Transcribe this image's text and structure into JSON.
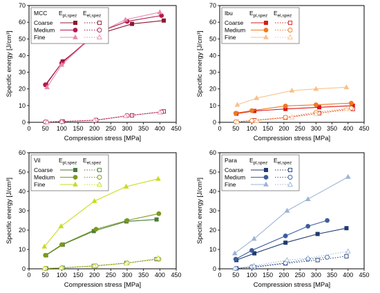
{
  "chart_data": [
    {
      "type": "line",
      "panel_label": "MCC",
      "xlabel": "Compression stress [MPa]",
      "ylabel": "Specific energy [J/cm³]",
      "xlim": [
        0,
        450
      ],
      "ylim": [
        0,
        70
      ],
      "xticks": [
        0,
        50,
        100,
        150,
        200,
        250,
        300,
        350,
        400,
        450
      ],
      "yticks": [
        0,
        10,
        20,
        30,
        40,
        50,
        60,
        70
      ],
      "legend_col1": "E_pl,spez",
      "legend_col2": "E_el,spez",
      "legend_placement": "top-left",
      "series": [
        {
          "name": "Coarse",
          "color": "#8b1a2e",
          "marker": "square",
          "pl": [
            [
              52,
              22.5
            ],
            [
              103,
              36.5
            ],
            [
              205,
              52.5
            ],
            [
              315,
              59
            ],
            [
              412,
              61
            ]
          ],
          "el": [
            [
              52,
              0.2
            ],
            [
              103,
              0.5
            ],
            [
              205,
              1.3
            ],
            [
              315,
              4.2
            ],
            [
              412,
              6.5
            ]
          ]
        },
        {
          "name": "Medium",
          "color": "#b5174f",
          "marker": "circle",
          "pl": [
            [
              50,
              22.5
            ],
            [
              100,
              35.5
            ],
            [
              205,
              53.5
            ],
            [
              300,
              60.5
            ],
            [
              405,
              64
            ]
          ],
          "el": [
            [
              50,
              0.2
            ],
            [
              100,
              0.5
            ],
            [
              205,
              1.3
            ],
            [
              300,
              4
            ],
            [
              405,
              6.2
            ]
          ]
        },
        {
          "name": "Fine",
          "color": "#e68aae",
          "marker": "triangle",
          "pl": [
            [
              55,
              21
            ],
            [
              100,
              34.5
            ],
            [
              200,
              52.5
            ],
            [
              295,
              61.5
            ],
            [
              400,
              66
            ]
          ],
          "el": [
            [
              55,
              0.1
            ],
            [
              100,
              0.4
            ],
            [
              200,
              1.2
            ],
            [
              295,
              3.8
            ],
            [
              400,
              6
            ]
          ]
        }
      ]
    },
    {
      "type": "line",
      "panel_label": "Ibu",
      "xlabel": "Compression stress [MPa]",
      "ylabel": "Specific energy [J/cm³]",
      "xlim": [
        0,
        450
      ],
      "ylim": [
        0,
        70
      ],
      "xticks": [
        0,
        50,
        100,
        150,
        200,
        250,
        300,
        350,
        400,
        450
      ],
      "yticks": [
        0,
        10,
        20,
        30,
        40,
        50,
        60,
        70
      ],
      "legend_col1": "E_pl,spez",
      "legend_col2": "E_el,spez",
      "legend_placement": "top-left",
      "series": [
        {
          "name": "Coarse",
          "color": "#d7191c",
          "marker": "square",
          "pl": [
            [
              52,
              5.2
            ],
            [
              108,
              6.8
            ],
            [
              205,
              8
            ],
            [
              310,
              9
            ],
            [
              415,
              10
            ]
          ],
          "el": [
            [
              52,
              0.3
            ],
            [
              108,
              1.2
            ],
            [
              205,
              2.8
            ],
            [
              310,
              5.5
            ],
            [
              415,
              8
            ]
          ]
        },
        {
          "name": "Medium",
          "color": "#f07820",
          "marker": "circle",
          "pl": [
            [
              50,
              5.5
            ],
            [
              100,
              7
            ],
            [
              205,
              9.8
            ],
            [
              300,
              10.5
            ],
            [
              410,
              11.5
            ]
          ],
          "el": [
            [
              50,
              0.3
            ],
            [
              100,
              1
            ],
            [
              205,
              3
            ],
            [
              300,
              6
            ],
            [
              410,
              8.5
            ]
          ]
        },
        {
          "name": "Fine",
          "color": "#f9c08a",
          "marker": "triangle",
          "pl": [
            [
              55,
              10.5
            ],
            [
              115,
              14.5
            ],
            [
              225,
              19
            ],
            [
              300,
              20
            ],
            [
              395,
              21
            ]
          ],
          "el": [
            [
              55,
              0.2
            ],
            [
              115,
              1
            ],
            [
              225,
              3
            ],
            [
              300,
              5
            ],
            [
              395,
              8
            ]
          ]
        }
      ]
    },
    {
      "type": "line",
      "panel_label": "Vil",
      "xlabel": "Compression stress [MPa]",
      "ylabel": "Specific energy [J/cm³]",
      "xlim": [
        0,
        450
      ],
      "ylim": [
        0,
        60
      ],
      "xticks": [
        0,
        50,
        100,
        150,
        200,
        250,
        300,
        350,
        400,
        450
      ],
      "yticks": [
        0,
        10,
        20,
        30,
        40,
        50,
        60
      ],
      "legend_col1": "E_pl,spez",
      "legend_col2": "E_el,spez",
      "legend_placement": "top-left",
      "series": [
        {
          "name": "Coarse",
          "color": "#4a7a3a",
          "marker": "square",
          "pl": [
            [
              52,
              7
            ],
            [
              103,
              12.5
            ],
            [
              198,
              19.5
            ],
            [
              298,
              24.5
            ],
            [
              390,
              25.5
            ]
          ],
          "el": [
            [
              52,
              0.2
            ],
            [
              103,
              0.5
            ],
            [
              198,
              1.5
            ],
            [
              298,
              3
            ],
            [
              390,
              5
            ]
          ]
        },
        {
          "name": "Medium",
          "color": "#7a9a1e",
          "marker": "circle",
          "pl": [
            [
              50,
              7
            ],
            [
              100,
              12.5
            ],
            [
              205,
              20.5
            ],
            [
              300,
              25
            ],
            [
              397,
              28.5
            ]
          ],
          "el": [
            [
              50,
              0.2
            ],
            [
              100,
              0.5
            ],
            [
              205,
              1.5
            ],
            [
              300,
              3
            ],
            [
              397,
              5
            ]
          ]
        },
        {
          "name": "Fine",
          "color": "#c8dc1e",
          "marker": "triangle",
          "pl": [
            [
              47,
              11.5
            ],
            [
              98,
              22
            ],
            [
              200,
              35
            ],
            [
              297,
              42.5
            ],
            [
              395,
              46.5
            ]
          ],
          "el": [
            [
              47,
              0.2
            ],
            [
              98,
              0.5
            ],
            [
              200,
              1.5
            ],
            [
              297,
              2.8
            ],
            [
              395,
              5.5
            ]
          ]
        }
      ]
    },
    {
      "type": "line",
      "panel_label": "Para",
      "xlabel": "Compression stress [MPa]",
      "ylabel": "Specific energy [J/cm³]",
      "xlim": [
        0,
        450
      ],
      "ylim": [
        0,
        60
      ],
      "xticks": [
        0,
        50,
        100,
        150,
        200,
        250,
        300,
        350,
        400,
        450
      ],
      "yticks": [
        0,
        10,
        20,
        30,
        40,
        50,
        60
      ],
      "legend_col1": "E_pl,spez",
      "legend_col2": "E_el,spez",
      "legend_placement": "top-left",
      "series": [
        {
          "name": "Coarse",
          "color": "#1f3a6e",
          "marker": "square",
          "pl": [
            [
              52,
              4.5
            ],
            [
              108,
              8
            ],
            [
              205,
              13.5
            ],
            [
              305,
              18
            ],
            [
              395,
              21
            ]
          ],
          "el": [
            [
              52,
              0.2
            ],
            [
              108,
              0.8
            ],
            [
              205,
              2.8
            ],
            [
              305,
              4.5
            ],
            [
              395,
              6.5
            ]
          ]
        },
        {
          "name": "Medium",
          "color": "#3c5c9c",
          "marker": "circle",
          "pl": [
            [
              50,
              5
            ],
            [
              100,
              9.5
            ],
            [
              205,
              17
            ],
            [
              275,
              22
            ],
            [
              335,
              25
            ]
          ],
          "el": [
            [
              50,
              0.2
            ],
            [
              100,
              1
            ],
            [
              205,
              3
            ],
            [
              275,
              5
            ],
            [
              335,
              6
            ]
          ]
        },
        {
          "name": "Fine",
          "color": "#9ab4d4",
          "marker": "triangle",
          "pl": [
            [
              47,
              8
            ],
            [
              107,
              15.5
            ],
            [
              210,
              30
            ],
            [
              275,
              36
            ],
            [
              400,
              47.5
            ]
          ],
          "el": [
            [
              47,
              0.2
            ],
            [
              107,
              1.5
            ],
            [
              210,
              4.5
            ],
            [
              275,
              5.5
            ],
            [
              400,
              9
            ]
          ]
        }
      ]
    }
  ]
}
